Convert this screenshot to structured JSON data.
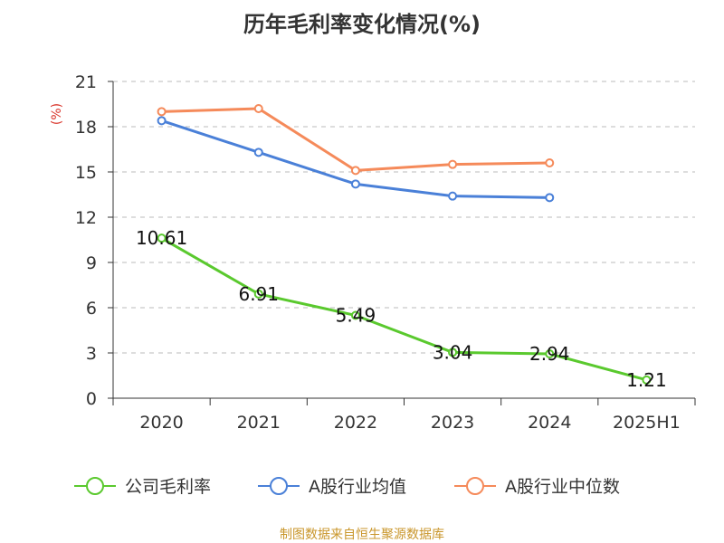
{
  "chart_data": {
    "type": "line",
    "title": "历年毛利率变化情况(%)",
    "ylabel": "(%)",
    "xlabel": "",
    "categories": [
      "2020",
      "2021",
      "2022",
      "2023",
      "2024",
      "2025H1"
    ],
    "ylim": [
      0,
      21
    ],
    "yticks": [
      0,
      3,
      6,
      9,
      12,
      15,
      18,
      21
    ],
    "grid": true,
    "legend_position": "bottom",
    "series": [
      {
        "name": "公司毛利率",
        "color": "#5ac92e",
        "values": [
          10.61,
          6.91,
          5.49,
          3.04,
          2.94,
          1.21
        ],
        "data_labels": [
          "10.61",
          "6.91",
          "5.49",
          "3.04",
          "2.94",
          "1.21"
        ]
      },
      {
        "name": "A股行业均值",
        "color": "#4a80d8",
        "values": [
          18.4,
          16.3,
          14.2,
          13.4,
          13.3,
          null
        ]
      },
      {
        "name": "A股行业中位数",
        "color": "#f58a5a",
        "values": [
          19.0,
          19.2,
          15.1,
          15.5,
          15.6,
          null
        ]
      }
    ],
    "ylabel_color": "#d9352b"
  },
  "footer": {
    "source": "制图数据来自恒生聚源数据库",
    "source_color": "#c9962b"
  }
}
